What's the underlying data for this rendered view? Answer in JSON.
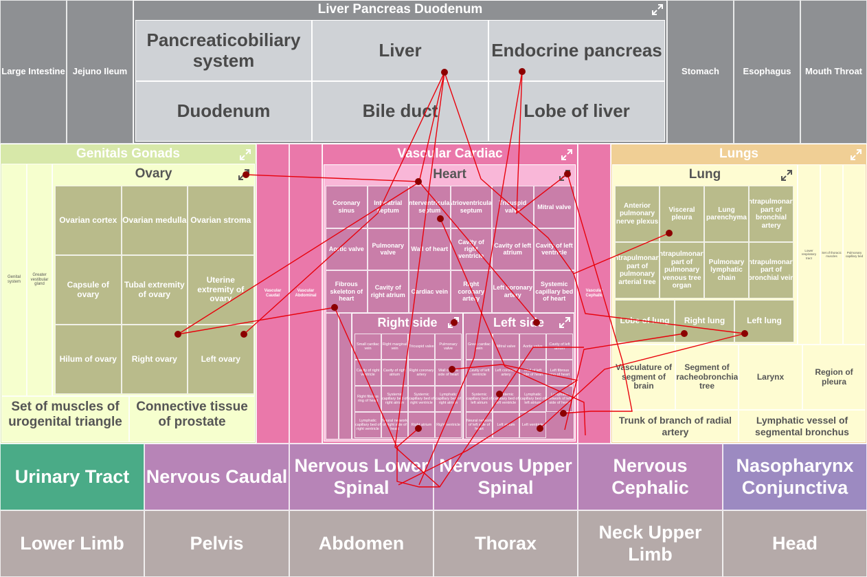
{
  "top_row": {
    "large_intestine": "Large Intestine",
    "jejuno_ileum": "Jejuno Ileum",
    "stomach": "Stomach",
    "esophagus": "Esophagus",
    "mouth_throat": "Mouth Throat"
  },
  "liver_group": {
    "title": "Liver Pancreas Duodenum",
    "cells": [
      "Pancreaticobiliary system",
      "Liver",
      "Endocrine pancreas",
      "Duodenum",
      "Bile duct",
      "Lobe of liver"
    ]
  },
  "genitals": {
    "title": "Genitals Gonads",
    "side1": "Genital system",
    "side2": "Greater vestibular gland",
    "ovary_title": "Ovary",
    "ovary_cells": [
      "Ovarian cortex",
      "Ovarian medulla",
      "Ovarian stroma",
      "Capsule of ovary",
      "Tubal extremity of ovary",
      "Uterine extremity of ovary",
      "Hilum of ovary",
      "Right ovary",
      "Left ovary"
    ],
    "bottom1": "Set of muscles of urogenital triangle",
    "bottom2": "Connective tissue of prostate"
  },
  "vascular": {
    "title": "Vascular Cardiac",
    "col_caudal": "Vascular Caudal",
    "col_abdominal": "Vascular Abdominal",
    "col_cephalic": "Vascular Cephalic",
    "heart_title": "Heart",
    "heart_cells": [
      "Coronary sinus",
      "Interatrial septum",
      "Interventricular septum",
      "Atrioventricular septum",
      "Tricuspid valve",
      "Mitral valve",
      "Aortic valve",
      "Pulmonary valve",
      "Wall of heart",
      "Cavity of right ventricle",
      "Cavity of left atrium",
      "Cavity of left ventricle",
      "Fibrous skeleton of heart",
      "Cavity of right atrium",
      "Cardiac vein",
      "Right coronary artery",
      "Left coronary artery",
      "Systemic capillary bed of heart"
    ],
    "right_side_title": "Right side",
    "left_side_title": "Left side",
    "right_cells": [
      "Small cardiac vein",
      "Right marginal vein",
      "Tricuspid valve",
      "Pulmonary valve",
      "Cavity of right ventricle",
      "Cavity of right atrium",
      "Right coronary artery",
      "Wall of right side of heart",
      "Right fibrous ring of heart",
      "Systemic capillary bed of right atrium",
      "Systemic capillary bed of right ventricle",
      "Lymphatic capillary bed of right atrium",
      "Lymphatic capillary bed of right ventricle",
      "Neural network of right side of heart",
      "Right atrium",
      "Right ventricle"
    ],
    "left_cells": [
      "Great cardiac vein",
      "Mitral valve",
      "Aortic valve",
      "Cavity of left atrium",
      "Cavity of left ventricle",
      "Left coronary artery",
      "Wall of left side of heart",
      "Left fibrous ring of heart",
      "Systemic capillary bed of left atrium",
      "Systemic capillary bed of left ventricle",
      "Lymphatic capillary bed of left atrium",
      "Lymphatic network of left side of heart",
      "Neural network of left side of heart",
      "Left atrium",
      "Left ventricle"
    ]
  },
  "lungs": {
    "title": "Lungs",
    "lung_title": "Lung",
    "lung_cells": [
      "Anterior pulmonary nerve plexus",
      "Visceral pleura",
      "Lung parenchyma",
      "Intrapulmonary part of bronchial artery",
      "Intrapulmonary part of pulmonary arterial tree",
      "Intrapulmonary part of pulmonary venous tree organ",
      "Pulmonary lymphatic chain",
      "Intrapulmonary part of bronchial vein",
      "Lobe of lung",
      "Right lung",
      "Left lung"
    ],
    "narrow_cols": [
      "Lower respiratory tract",
      "Set of thoracic muscles",
      "Pulmonary capillary bed"
    ],
    "cells": [
      "Vasculature of segment of brain",
      "Segment of tracheobronchial tree",
      "Larynx",
      "Region of pleura",
      "Trunk of branch of radial artery",
      "Lymphatic vessel of segmental bronchus"
    ]
  },
  "bottom_rows": {
    "row1": [
      "Urinary Tract",
      "Nervous Caudal",
      "Nervous Lower Spinal",
      "Nervous Upper Spinal",
      "Nervous Cephalic",
      "Nasopharynx Conjunctiva"
    ],
    "row2": [
      "Lower Limb",
      "Pelvis",
      "Abdomen",
      "Thorax",
      "Neck Upper Limb",
      "Head"
    ]
  },
  "colors": {
    "link_line": "#e8000b",
    "node": "#8b0000",
    "urinary": "#4aab87",
    "nasopharynx": "#9c8ac1"
  }
}
